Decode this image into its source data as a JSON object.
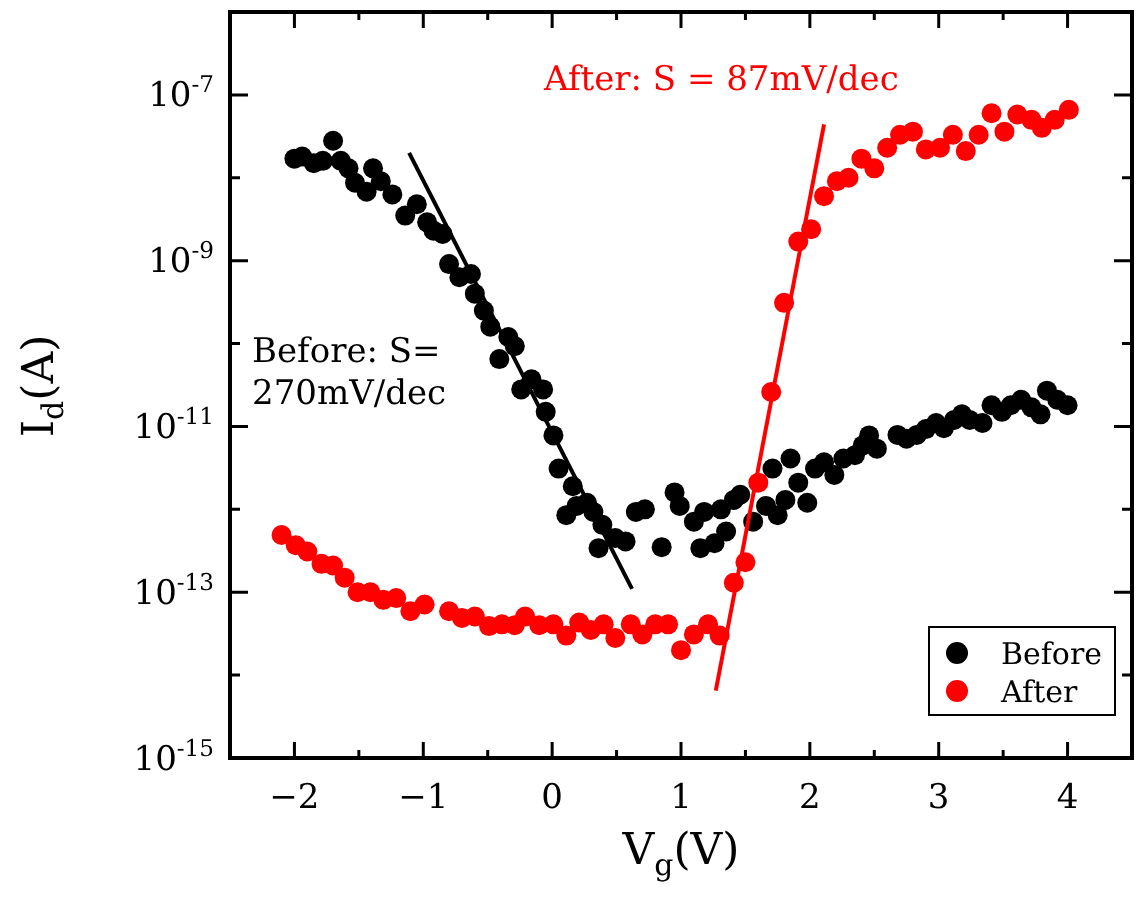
{
  "chart_data": {
    "type": "scatter",
    "xlabel": "V$_{g}$(V)",
    "ylabel": "I$_{d}$(A)",
    "xlim": [
      -2.5,
      4.5
    ],
    "xticks": [
      {
        "value": -2.5,
        "label": null
      },
      {
        "value": -2,
        "label": "−2"
      },
      {
        "value": -1.5,
        "label": null
      },
      {
        "value": -1,
        "label": "−1"
      },
      {
        "value": -0.5,
        "label": null
      },
      0,
      {
        "value": 0.5,
        "label": null
      },
      1,
      {
        "value": 1.5,
        "label": null
      },
      2,
      {
        "value": 2.5,
        "label": null
      },
      3,
      {
        "value": 3.5,
        "label": null
      },
      4
    ],
    "ylim": [
      1e-15,
      1e-06
    ],
    "yticks": [
      {
        "value": 1e-15,
        "label": "10$^{-15}$"
      },
      {
        "value": 1e-14,
        "label": null
      },
      {
        "value": 1e-13,
        "label": "10$^{-13}$"
      },
      {
        "value": 1e-12,
        "label": null
      },
      {
        "value": 1e-11,
        "label": "10$^{-11}$"
      },
      {
        "value": 1e-10,
        "label": null
      },
      {
        "value": 1e-09,
        "label": "10$^{-9}$"
      },
      {
        "value": 1e-08,
        "label": null
      },
      {
        "value": 1e-07,
        "label": "10$^{-7}$"
      }
    ],
    "log": "y",
    "grid": false,
    "legend": "bottom right",
    "annotations": [
      "After: S = 87mV/dec",
      "Before: S=\n270mV/dec"
    ],
    "series": [
      {
        "name": "Before",
        "color": "#000000",
        "marker": "circle",
        "x": [
          -2.0,
          -1.94,
          -1.85,
          -1.78,
          -1.7,
          -1.64,
          -1.58,
          -1.53,
          -1.44,
          -1.39,
          -1.33,
          -1.24,
          -1.14,
          -1.05,
          -0.97,
          -0.92,
          -0.85,
          -0.8,
          -0.72,
          -0.63,
          -0.6,
          -0.53,
          -0.48,
          -0.41,
          -0.34,
          -0.29,
          -0.24,
          -0.16,
          -0.07,
          -0.05,
          0.01,
          0.05,
          0.11,
          0.16,
          0.19,
          0.27,
          0.32,
          0.36,
          0.39,
          0.49,
          0.57,
          0.65,
          0.72,
          0.85,
          0.95,
          0.99,
          1.1,
          1.15,
          1.18,
          1.26,
          1.31,
          1.35,
          1.41,
          1.46,
          1.56,
          1.66,
          1.71,
          1.75,
          1.81,
          1.85,
          1.91,
          1.98,
          2.04,
          2.11,
          2.19,
          2.26,
          2.35,
          2.41,
          2.46,
          2.52,
          2.68,
          2.75,
          2.83,
          2.9,
          2.98,
          3.04,
          3.12,
          3.18,
          3.24,
          3.34,
          3.41,
          3.49,
          3.56,
          3.64,
          3.72,
          3.79,
          3.84,
          3.92,
          4.0
        ],
        "values": [
          1.7e-08,
          1.8e-08,
          1.5e-08,
          1.6e-08,
          2.8e-08,
          1.6e-08,
          1.3e-08,
          8.7e-09,
          6.8e-09,
          1.3e-08,
          9.1e-09,
          6.3e-09,
          3.5e-09,
          4.8e-09,
          2.9e-09,
          2.3e-09,
          2.1e-09,
          9.1e-10,
          6.3e-10,
          6.9e-10,
          4e-10,
          2.5e-10,
          1.6e-10,
          6.5e-11,
          1.2e-10,
          9.3e-11,
          2.8e-11,
          3.7e-11,
          2.8e-11,
          1.5e-11,
          7.8e-12,
          3.1e-12,
          8.5e-13,
          1.9e-12,
          1.1e-12,
          1.2e-12,
          9.3e-13,
          3.4e-13,
          6.5e-13,
          4.5e-13,
          4.1e-13,
          9.3e-13,
          1e-12,
          3.5e-13,
          1.6e-12,
          1.1e-12,
          7.1e-13,
          3.4e-13,
          9.3e-13,
          3.9e-13,
          1e-12,
          5.4e-13,
          1.3e-12,
          1.5e-12,
          7.1e-13,
          1.1e-12,
          3.1e-12,
          8.5e-13,
          1.3e-12,
          4.1e-12,
          2.1e-12,
          1.2e-12,
          3.1e-12,
          3.7e-12,
          2.6e-12,
          4.1e-12,
          4.5e-12,
          5.9e-12,
          7.8e-12,
          5.4e-12,
          7.9e-12,
          7.1e-12,
          7.9e-12,
          9.3e-12,
          1.1e-11,
          9.5e-12,
          1.2e-11,
          1.4e-11,
          1.2e-11,
          1.1e-11,
          1.8e-11,
          1.5e-11,
          1.8e-11,
          2.1e-11,
          1.7e-11,
          1.4e-11,
          2.7e-11,
          2.1e-11,
          1.8e-11
        ]
      },
      {
        "name": "After",
        "color": "#ff0000",
        "marker": "circle",
        "x": [
          -2.1,
          -1.99,
          -1.9,
          -1.79,
          -1.7,
          -1.61,
          -1.51,
          -1.41,
          -1.31,
          -1.21,
          -1.1,
          -0.99,
          -0.8,
          -0.7,
          -0.6,
          -0.49,
          -0.39,
          -0.29,
          -0.21,
          -0.1,
          0.01,
          0.11,
          0.21,
          0.3,
          0.4,
          0.49,
          0.61,
          0.7,
          0.8,
          0.9,
          1.0,
          1.1,
          1.21,
          1.3,
          1.41,
          1.5,
          1.6,
          1.7,
          1.8,
          1.91,
          2.01,
          2.11,
          2.21,
          2.3,
          2.4,
          2.5,
          2.6,
          2.7,
          2.8,
          2.9,
          3.01,
          3.11,
          3.21,
          3.31,
          3.41,
          3.51,
          3.61,
          3.72,
          3.8,
          3.9,
          4.01
        ],
        "values": [
          4.9e-13,
          3.7e-13,
          3.1e-13,
          2.2e-13,
          2.1e-13,
          1.5e-13,
          1e-13,
          1e-13,
          8.1e-14,
          8.5e-14,
          5.9e-14,
          7.1e-14,
          5.9e-14,
          4.9e-14,
          5.1e-14,
          3.9e-14,
          4.1e-14,
          4e-14,
          5.1e-14,
          4e-14,
          4.1e-14,
          3e-14,
          4.3e-14,
          3.5e-14,
          4.1e-14,
          2.8e-14,
          4.1e-14,
          3.1e-14,
          4.1e-14,
          4.1e-14,
          2e-14,
          3.1e-14,
          4.1e-14,
          3e-14,
          1.3e-13,
          2.3e-13,
          2.1e-12,
          2.6e-11,
          3.1e-10,
          1.7e-09,
          2.4e-09,
          6e-09,
          9.1e-09,
          1e-08,
          1.7e-08,
          1.3e-08,
          2.3e-08,
          3.3e-08,
          3.6e-08,
          2.2e-08,
          2.3e-08,
          3.3e-08,
          2.1e-08,
          3.3e-08,
          6e-08,
          3.6e-08,
          5.8e-08,
          5e-08,
          4e-08,
          5e-08,
          6.6e-08
        ]
      },
      {
        "type": "line",
        "color": "#000000",
        "marker": "none",
        "x": [
          -1.11,
          0.62
        ],
        "values": [
          2e-08,
          1.1e-13
        ]
      },
      {
        "type": "line",
        "color": "#ff0000",
        "marker": "none",
        "x": [
          1.27,
          2.11
        ],
        "values": [
          6.5e-15,
          4.4e-08
        ]
      }
    ]
  }
}
